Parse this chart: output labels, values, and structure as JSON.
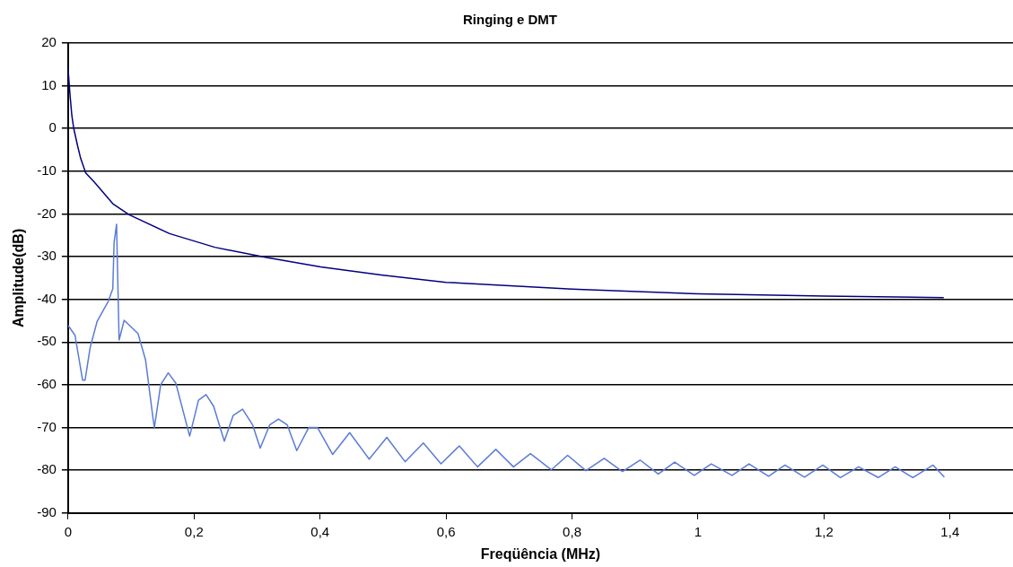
{
  "chart_data": {
    "type": "line",
    "title": "Ringing e DMT",
    "xlabel": "Freqüência (MHz)",
    "ylabel": "Amplitude(dB)",
    "xlim": [
      0,
      1.5
    ],
    "xticks": [
      0,
      {
        "value": 0.2,
        "label": "0,2"
      },
      {
        "value": 0.4,
        "label": "0,4"
      },
      {
        "value": 0.6,
        "label": "0,6"
      },
      {
        "value": 0.8,
        "label": "0,8"
      },
      1,
      {
        "value": 1.2,
        "label": "1,2"
      },
      {
        "value": 1.4,
        "label": "1,4"
      }
    ],
    "ylim": [
      -90,
      20
    ],
    "yticks": [
      -90,
      -80,
      -70,
      -60,
      -50,
      -40,
      -30,
      -20,
      -10,
      0,
      10,
      20
    ],
    "grid": "y",
    "legend": false,
    "marker": "none",
    "line_style": "solid",
    "series": [
      {
        "color": "#000080",
        "x": [
          0,
          0.001,
          0.003,
          0.006,
          0.009,
          0.015,
          0.02,
          0.028,
          0.042,
          0.071,
          0.097,
          0.161,
          0.233,
          0.315,
          0.401,
          0.497,
          0.6,
          0.8,
          1.0,
          1.2,
          1.39
        ],
        "values": [
          14,
          12,
          8,
          3,
          0,
          -4,
          -7,
          -10.4,
          -12.6,
          -17.6,
          -20.2,
          -24.6,
          -27.8,
          -30.2,
          -32.4,
          -34.3,
          -36,
          -37.6,
          -38.7,
          -39.2,
          -39.6
        ]
      },
      {
        "color": "#5b7bd5",
        "x": [
          0,
          0.011,
          0.023,
          0.027,
          0.035,
          0.046,
          0.064,
          0.071,
          0.073,
          0.077,
          0.078,
          0.081,
          0.089,
          0.111,
          0.123,
          0.135,
          0.137,
          0.147,
          0.159,
          0.171,
          0.193,
          0.207,
          0.219,
          0.231,
          0.248,
          0.262,
          0.277,
          0.293,
          0.305,
          0.32,
          0.334,
          0.348,
          0.363,
          0.382,
          0.396,
          0.42,
          0.447,
          0.478,
          0.506,
          0.535,
          0.564,
          0.592,
          0.621,
          0.65,
          0.679,
          0.707,
          0.734,
          0.767,
          0.793,
          0.822,
          0.851,
          0.88,
          0.908,
          0.937,
          0.963,
          0.994,
          1.021,
          1.054,
          1.081,
          1.112,
          1.138,
          1.169,
          1.198,
          1.226,
          1.255,
          1.286,
          1.313,
          1.341,
          1.373,
          1.391
        ],
        "values": [
          -46.1,
          -48.4,
          -58.9,
          -58.9,
          -51.3,
          -45.2,
          -40.4,
          -37.5,
          -26.7,
          -22.4,
          -29.6,
          -49.5,
          -44.9,
          -48,
          -54.2,
          -68,
          -70,
          -60,
          -57.2,
          -59.6,
          -72,
          -63.6,
          -62.3,
          -65,
          -73.2,
          -67.2,
          -65.7,
          -69.4,
          -74.8,
          -69.4,
          -68,
          -69.4,
          -75.4,
          -70,
          -70,
          -76.3,
          -71.2,
          -77.4,
          -72.3,
          -78,
          -73.6,
          -78.5,
          -74.3,
          -79.2,
          -75.1,
          -79.2,
          -76.1,
          -79.9,
          -76.5,
          -80.1,
          -77.2,
          -80.3,
          -77.6,
          -80.9,
          -78.1,
          -81.2,
          -78.5,
          -81.2,
          -78.5,
          -81.4,
          -78.8,
          -81.6,
          -78.8,
          -81.7,
          -79.2,
          -81.7,
          -79.2,
          -81.7,
          -78.8,
          -81.6
        ]
      }
    ]
  }
}
